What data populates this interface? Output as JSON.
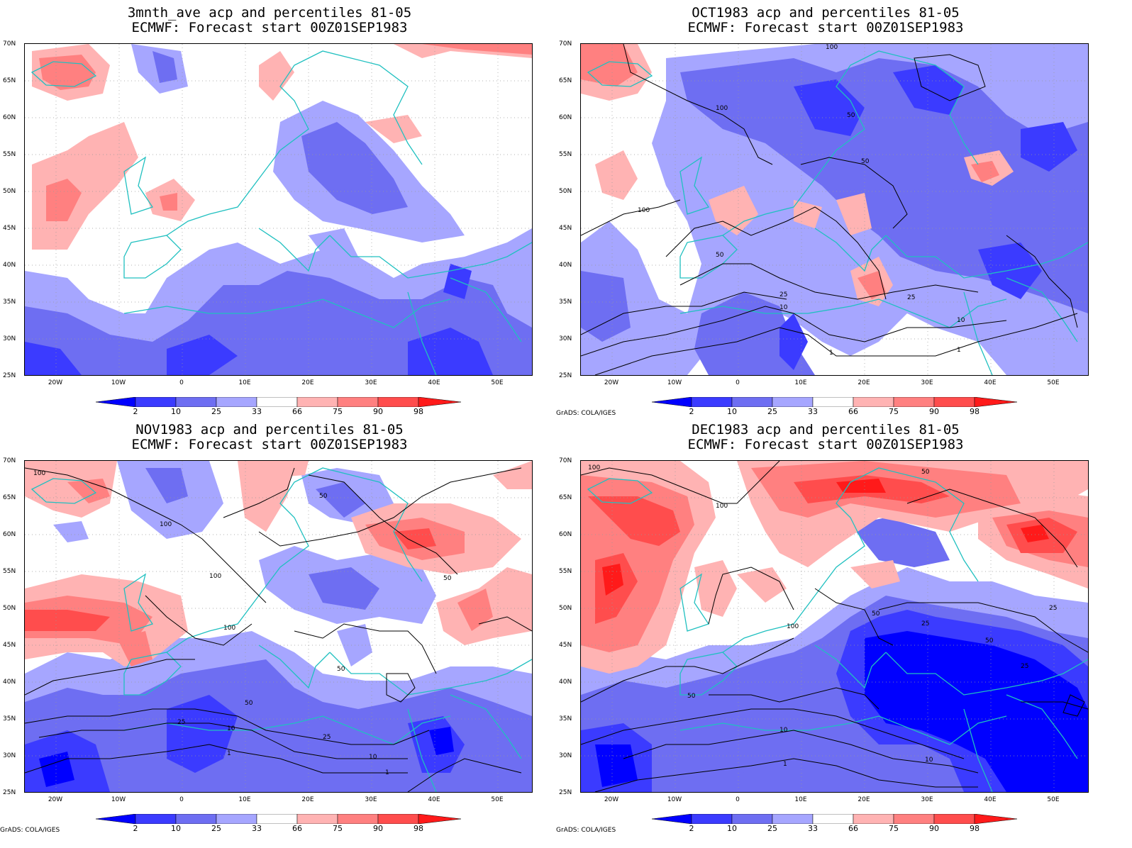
{
  "legend": {
    "ticks": [
      "2",
      "10",
      "25",
      "33",
      "66",
      "75",
      "90",
      "98"
    ],
    "colors": [
      "#0000ff",
      "#3b3bff",
      "#6e6ef2",
      "#a6a6ff",
      "#ffffff",
      "#ffb3b3",
      "#ff8080",
      "#ff4d4d",
      "#ff1a1a"
    ]
  },
  "credit": "GrADS: COLA/IGES",
  "axes": {
    "lat": [
      "70N",
      "65N",
      "60N",
      "55N",
      "50N",
      "45N",
      "40N",
      "35N",
      "30N",
      "25N"
    ],
    "lon": [
      "20W",
      "10W",
      "0",
      "10E",
      "20E",
      "30E",
      "40E",
      "50E"
    ]
  },
  "panels": [
    {
      "id": "3mnth",
      "title1": "3mnth_ave acp and percentiles 81-05",
      "title2": "ECMWF: Forecast start 00Z01SEP1983",
      "show_credit": false,
      "contours": []
    },
    {
      "id": "oct",
      "title1": "OCT1983 acp and percentiles 81-05",
      "title2": "ECMWF: Forecast start 00Z01SEP1983",
      "show_credit": true,
      "contours": [
        "100",
        "100",
        "100",
        "50",
        "50",
        "50",
        "25",
        "25",
        "10",
        "10",
        "1",
        "1"
      ]
    },
    {
      "id": "nov",
      "title1": "NOV1983 acp and percentiles 81-05",
      "title2": "ECMWF: Forecast start 00Z01SEP1983",
      "show_credit": true,
      "contours": [
        "100",
        "100",
        "100",
        "100",
        "50",
        "50",
        "50",
        "50",
        "25",
        "25",
        "10",
        "10",
        "1",
        "1"
      ]
    },
    {
      "id": "dec",
      "title1": "DEC1983 acp and percentiles 81-05",
      "title2": "ECMWF: Forecast start 00Z01SEP1983",
      "show_credit": true,
      "contours": [
        "100",
        "100",
        "100",
        "50",
        "50",
        "50",
        "50",
        "25",
        "25",
        "25",
        "10",
        "10",
        "1"
      ]
    }
  ]
}
